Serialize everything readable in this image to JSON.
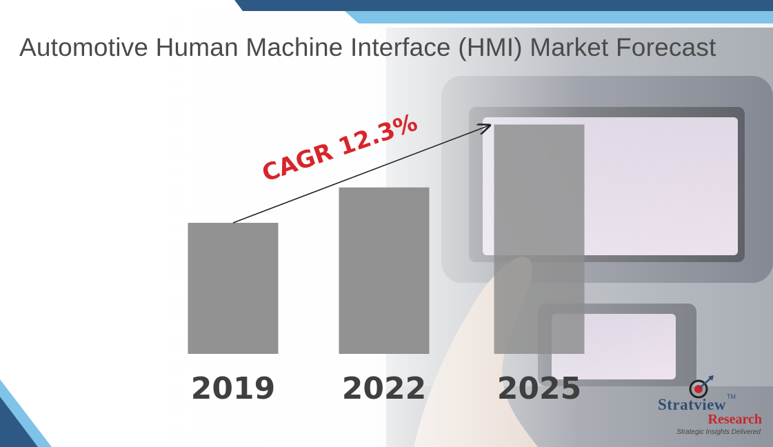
{
  "chart_data": {
    "type": "bar",
    "title": "Automotive Human Machine Interface (HMI) Market Forecast",
    "categories": [
      "2019",
      "2022",
      "2025"
    ],
    "values": [
      100,
      127,
      175
    ],
    "ylim": [
      0,
      180
    ],
    "annotation": "CAGR 12.3%",
    "grid": false,
    "legend": "none",
    "colors": {
      "bar": "#8c8c8c",
      "annotation": "#d7252b",
      "accent_dark": "#2f5985",
      "accent_light": "#7fc3e8"
    }
  },
  "branding": {
    "name_part1": "Stratview",
    "trademark": "TM",
    "name_part2": "Research",
    "tagline": "Strategic Insights Delivered"
  }
}
